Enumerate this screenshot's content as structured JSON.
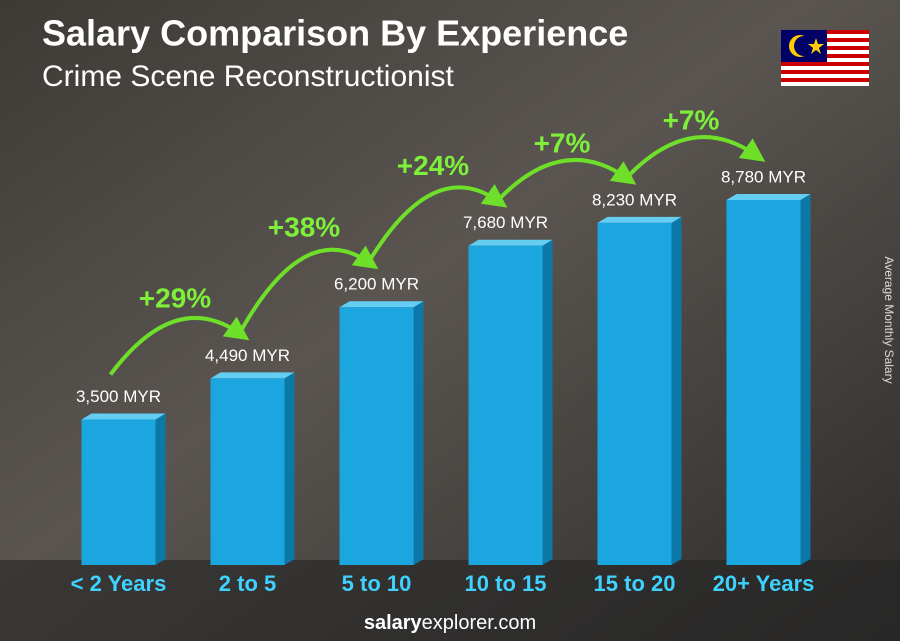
{
  "chart_data": {
    "type": "bar",
    "title": "Salary Comparison By Experience",
    "subtitle": "Crime Scene Reconstructionist",
    "y_label": "Average Monthly Salary",
    "categories": [
      "< 2 Years",
      "2 to 5",
      "5 to 10",
      "10 to 15",
      "15 to 20",
      "20+ Years"
    ],
    "values": [
      3500,
      4490,
      6200,
      7680,
      8230,
      8780
    ],
    "value_labels": [
      "3,500 MYR",
      "4,490 MYR",
      "6,200 MYR",
      "7,680 MYR",
      "8,230 MYR",
      "8,780 MYR"
    ],
    "annotations": [
      "+29%",
      "+38%",
      "+24%",
      "+7%",
      "+7%"
    ],
    "color": "#1ba6e0",
    "footer_bold": "salary",
    "footer_rest": "explorer.com"
  }
}
